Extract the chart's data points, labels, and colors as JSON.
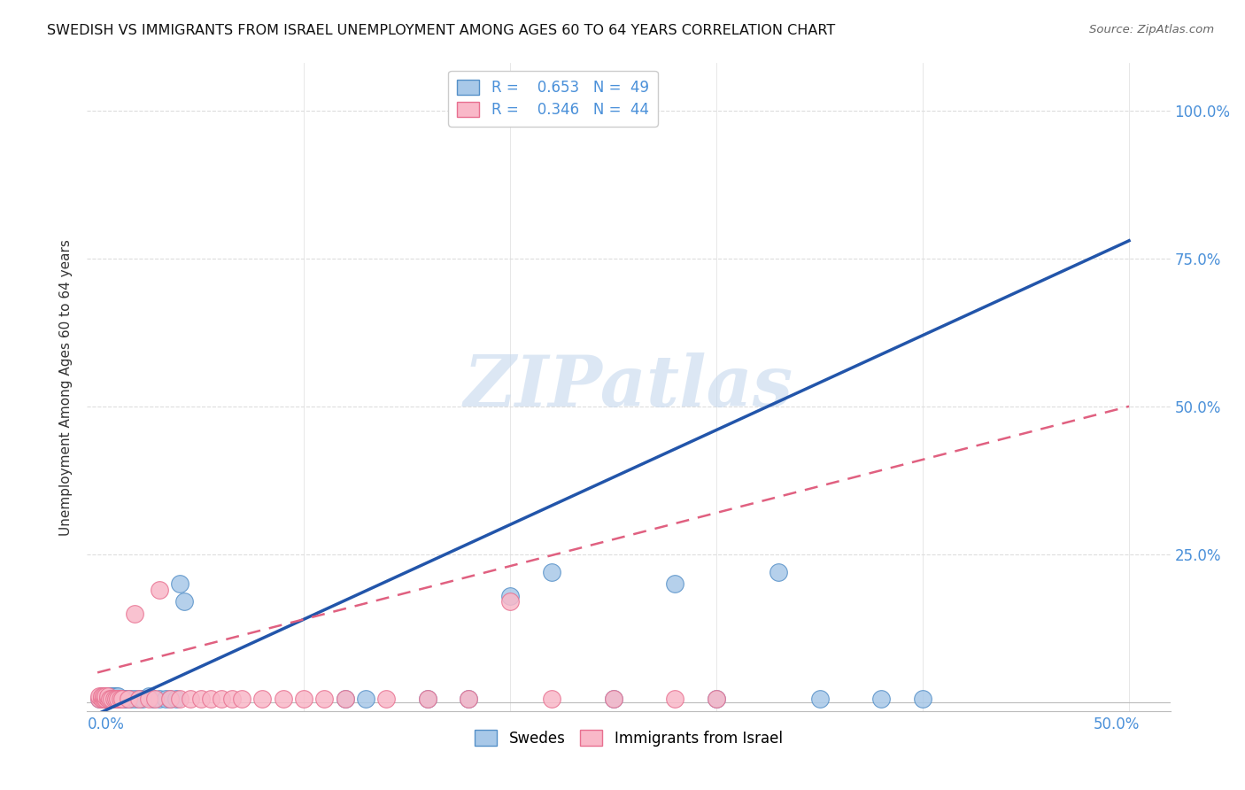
{
  "title": "SWEDISH VS IMMIGRANTS FROM ISRAEL UNEMPLOYMENT AMONG AGES 60 TO 64 YEARS CORRELATION CHART",
  "source": "Source: ZipAtlas.com",
  "ylabel": "Unemployment Among Ages 60 to 64 years",
  "xlim": [
    0.0,
    0.5
  ],
  "ylim": [
    0.0,
    1.05
  ],
  "ytick_positions": [
    0.25,
    0.5,
    0.75,
    1.0
  ],
  "ytick_labels": [
    "25.0%",
    "50.0%",
    "75.0%",
    "100.0%"
  ],
  "xtick_positions": [
    0.0,
    0.1,
    0.2,
    0.3,
    0.4,
    0.5
  ],
  "swedes_color": "#a8c8e8",
  "swedes_edge_color": "#5590c8",
  "israel_color": "#f9b8c8",
  "israel_edge_color": "#e87090",
  "swedes_line_color": "#2255aa",
  "israel_line_color": "#e06080",
  "watermark_color": "#c5d8ee",
  "grid_color": "#dddddd",
  "background_color": "#ffffff",
  "swedes_x": [
    0.001,
    0.002,
    0.002,
    0.003,
    0.003,
    0.004,
    0.004,
    0.005,
    0.005,
    0.006,
    0.006,
    0.007,
    0.007,
    0.008,
    0.008,
    0.009,
    0.009,
    0.01,
    0.01,
    0.011,
    0.012,
    0.013,
    0.014,
    0.015,
    0.016,
    0.018,
    0.02,
    0.022,
    0.025,
    0.027,
    0.03,
    0.033,
    0.035,
    0.038,
    0.04,
    0.042,
    0.12,
    0.13,
    0.16,
    0.18,
    0.2,
    0.22,
    0.25,
    0.28,
    0.3,
    0.33,
    0.35,
    0.38,
    0.4
  ],
  "swedes_y": [
    0.005,
    0.005,
    0.01,
    0.005,
    0.01,
    0.005,
    0.01,
    0.005,
    0.01,
    0.005,
    0.01,
    0.005,
    0.01,
    0.005,
    0.01,
    0.005,
    0.01,
    0.005,
    0.01,
    0.005,
    0.005,
    0.005,
    0.005,
    0.005,
    0.005,
    0.005,
    0.005,
    0.005,
    0.01,
    0.005,
    0.005,
    0.005,
    0.005,
    0.005,
    0.2,
    0.17,
    0.005,
    0.005,
    0.005,
    0.005,
    0.18,
    0.22,
    0.005,
    0.2,
    0.005,
    0.22,
    0.005,
    0.005,
    0.005
  ],
  "israel_x": [
    0.001,
    0.001,
    0.002,
    0.002,
    0.003,
    0.003,
    0.004,
    0.004,
    0.005,
    0.005,
    0.006,
    0.007,
    0.008,
    0.009,
    0.01,
    0.011,
    0.012,
    0.015,
    0.018,
    0.02,
    0.025,
    0.028,
    0.03,
    0.035,
    0.04,
    0.045,
    0.05,
    0.055,
    0.06,
    0.065,
    0.07,
    0.08,
    0.09,
    0.1,
    0.11,
    0.12,
    0.14,
    0.16,
    0.18,
    0.2,
    0.22,
    0.25,
    0.28,
    0.3
  ],
  "israel_y": [
    0.005,
    0.01,
    0.005,
    0.01,
    0.005,
    0.01,
    0.005,
    0.01,
    0.005,
    0.01,
    0.005,
    0.005,
    0.005,
    0.005,
    0.005,
    0.005,
    0.005,
    0.005,
    0.15,
    0.005,
    0.005,
    0.005,
    0.19,
    0.005,
    0.005,
    0.005,
    0.005,
    0.005,
    0.005,
    0.005,
    0.005,
    0.005,
    0.005,
    0.005,
    0.005,
    0.005,
    0.005,
    0.005,
    0.005,
    0.17,
    0.005,
    0.005,
    0.005,
    0.005
  ],
  "sw_line_x0": 0.0,
  "sw_line_y0": -0.02,
  "sw_line_x1": 0.5,
  "sw_line_y1": 0.78,
  "is_line_x0": 0.0,
  "is_line_y0": 0.05,
  "is_line_x1": 0.5,
  "is_line_y1": 0.5
}
